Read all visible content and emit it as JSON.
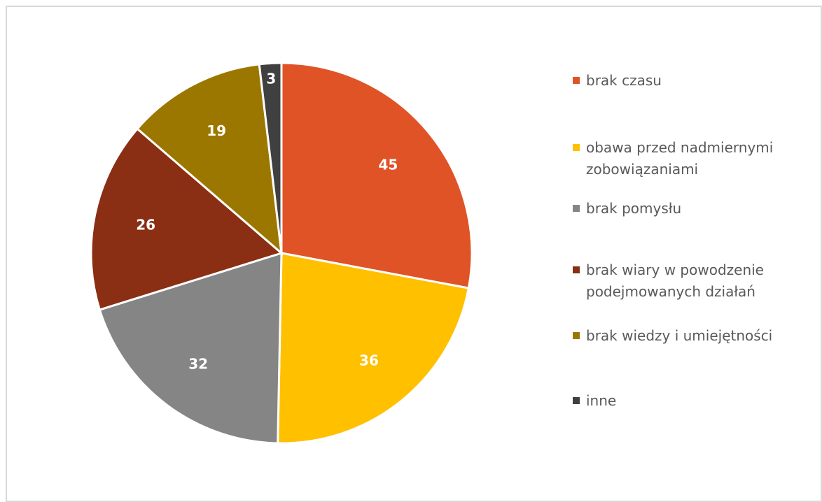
{
  "chart_data": {
    "type": "pie",
    "categories": [
      "brak czasu",
      "obawa przed nadmiernymi zobowiązaniami",
      "brak pomysłu",
      "brak wiary w powodzenie podejmowanych działań",
      "brak wiedzy i umiejętności",
      "inne"
    ],
    "values": [
      45,
      36,
      32,
      26,
      19,
      3
    ],
    "colors": [
      "#E05327",
      "#FFC000",
      "#858585",
      "#8A2E14",
      "#9C7700",
      "#404040"
    ],
    "legend_position": "right"
  },
  "legend": {
    "items": [
      {
        "label_lines": [
          "brak czasu"
        ]
      },
      {
        "label_lines": [
          "obawa przed nadmiernymi",
          "zobowiązaniami"
        ]
      },
      {
        "label_lines": [
          "brak pomysłu"
        ]
      },
      {
        "label_lines": [
          "brak wiary w powodzenie",
          "podejmowanych działań"
        ]
      },
      {
        "label_lines": [
          "brak wiedzy i umiejętności"
        ]
      },
      {
        "label_lines": [
          "inne"
        ]
      }
    ]
  }
}
